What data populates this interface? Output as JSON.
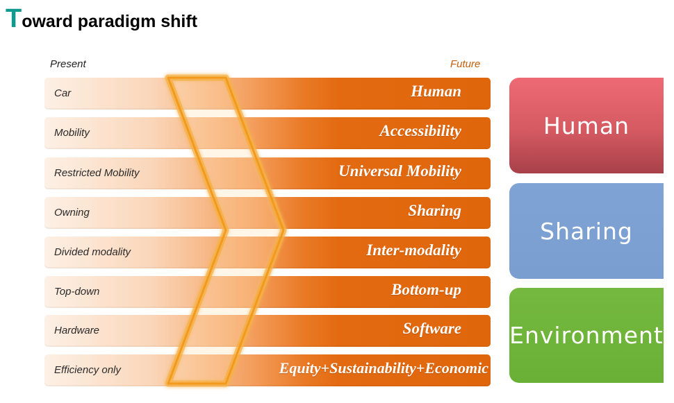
{
  "title": {
    "first_letter": "T",
    "rest": "oward paradigm shift"
  },
  "labels": {
    "present": "Present",
    "future": "Future"
  },
  "rows": [
    {
      "present": "Car",
      "future": "Human"
    },
    {
      "present": "Mobility",
      "future": "Accessibility"
    },
    {
      "present": "Restricted Mobility",
      "future": "Universal Mobility"
    },
    {
      "present": "Owning",
      "future": "Sharing"
    },
    {
      "present": "Divided modality",
      "future": "Inter-modality"
    },
    {
      "present": "Top-down",
      "future": "Bottom-up"
    },
    {
      "present": "Hardware",
      "future": "Software"
    },
    {
      "present": "Efficiency only",
      "future": "Equity+Sustainability+Economic"
    }
  ],
  "boxes": [
    {
      "label": "Human",
      "color": "#d55a62"
    },
    {
      "label": "Sharing",
      "color": "#7a9ed0"
    },
    {
      "label": "Environment",
      "color": "#6ab036"
    }
  ],
  "colors": {
    "accent_orange": "#e0660c",
    "title_accent": "#0e9a8e"
  }
}
